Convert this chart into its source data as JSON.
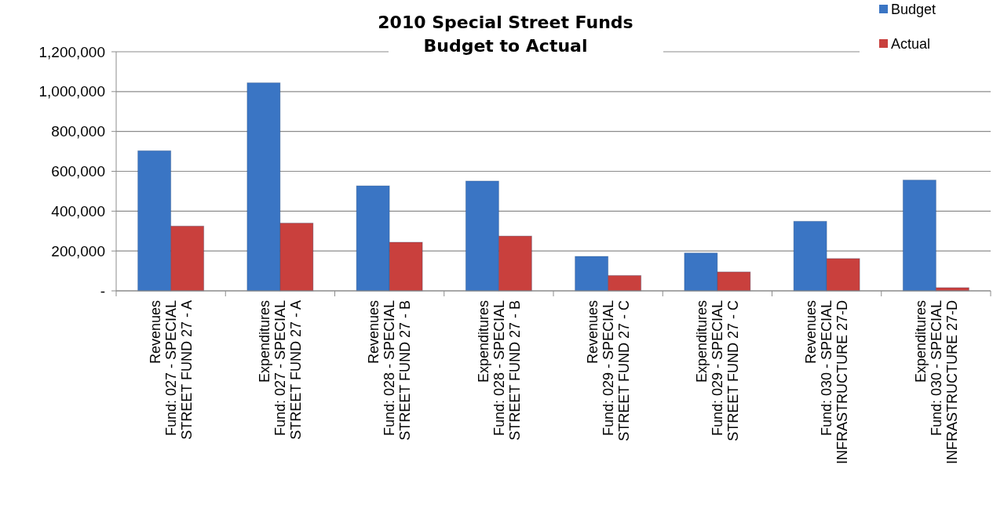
{
  "chart_data": {
    "type": "bar",
    "title": "2010 Special Street Funds\nBudget to Actual",
    "categories": [
      "Revenues\nFund:  027 - SPECIAL\nSTREET FUND 27 - A",
      "Expenditures\nFund:  027 - SPECIAL\nSTREET FUND 27 - A",
      "Revenues\nFund:  028 - SPECIAL\nSTREET FUND 27 - B",
      "Expenditures\nFund:  028 - SPECIAL\nSTREET FUND 27 - B",
      "Revenues\nFund:  029 - SPECIAL\nSTREET FUND 27 - C",
      "Expenditures\nFund:  029 - SPECIAL\nSTREET FUND 27 - C",
      "Revenues\nFund:  030 - SPECIAL\nINFRASTRUCTURE 27-D",
      "Expenditures\nFund:  030 - SPECIAL\nINFRASTRUCTURE 27-D"
    ],
    "series": [
      {
        "name": "Budget",
        "color": "#3a75c4",
        "values": [
          703000,
          1044000,
          527000,
          551000,
          173000,
          190000,
          349000,
          556000
        ]
      },
      {
        "name": "Actual",
        "color": "#c9403d",
        "values": [
          325000,
          340000,
          244000,
          275000,
          77000,
          95000,
          162000,
          16000
        ]
      }
    ],
    "ylim": [
      0,
      1200000
    ],
    "yticks": [
      {
        "value": 0,
        "label": "-"
      },
      {
        "value": 200000,
        "label": "200,000"
      },
      {
        "value": 400000,
        "label": "400,000"
      },
      {
        "value": 600000,
        "label": "600,000"
      },
      {
        "value": 800000,
        "label": "800,000"
      },
      {
        "value": 1000000,
        "label": "1,000,000"
      },
      {
        "value": 1200000,
        "label": "1,200,000"
      }
    ],
    "grid": "y",
    "legend": "top right"
  }
}
